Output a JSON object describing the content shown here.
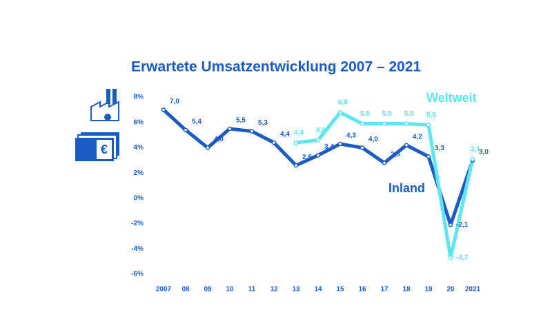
{
  "chart_data": {
    "type": "line",
    "title": "Erwartete Umsatzentwicklung 2007 – 2021",
    "categories": [
      "2007",
      "08",
      "09",
      "10",
      "11",
      "12",
      "13",
      "14",
      "15",
      "16",
      "17",
      "18",
      "19",
      "20",
      "2021"
    ],
    "series": [
      {
        "name": "Inland",
        "color": "#1a5bc4",
        "values": [
          7.0,
          5.4,
          4.0,
          5.5,
          5.3,
          4.4,
          2.6,
          3.4,
          4.3,
          4.0,
          2.8,
          4.2,
          3.3,
          -2.1,
          3.0
        ],
        "value_labels": [
          "7,0",
          "5,4",
          "4,0",
          "5,5",
          "5,3",
          "4,4",
          "2,6",
          "3,4",
          "4,3",
          "4,0",
          "2,8",
          "4,2",
          "3,3",
          "-2,1",
          "3,0"
        ]
      },
      {
        "name": "Weltweit",
        "color": "#5ee6ef",
        "values": [
          null,
          null,
          null,
          null,
          null,
          null,
          4.4,
          4.6,
          6.8,
          5.9,
          5.9,
          5.9,
          5.8,
          -4.7,
          3.1
        ],
        "value_labels": [
          null,
          null,
          null,
          null,
          null,
          null,
          "4,4",
          "4,6",
          "6,8",
          "5,9",
          "5,9",
          "5,9",
          "5,8",
          "-4,7",
          "3,1"
        ]
      }
    ],
    "ylim": [
      -6,
      8
    ],
    "yticks": [
      {
        "value": -6,
        "label": "-6%"
      },
      {
        "value": -4,
        "label": "-4%"
      },
      {
        "value": -2,
        "label": "-2%"
      },
      {
        "value": 0,
        "label": "0%"
      },
      {
        "value": 2,
        "label": "2%"
      },
      {
        "value": 4,
        "label": "4%"
      },
      {
        "value": 6,
        "label": "6%"
      },
      {
        "value": 8,
        "label": "8%"
      }
    ],
    "grid": false
  }
}
